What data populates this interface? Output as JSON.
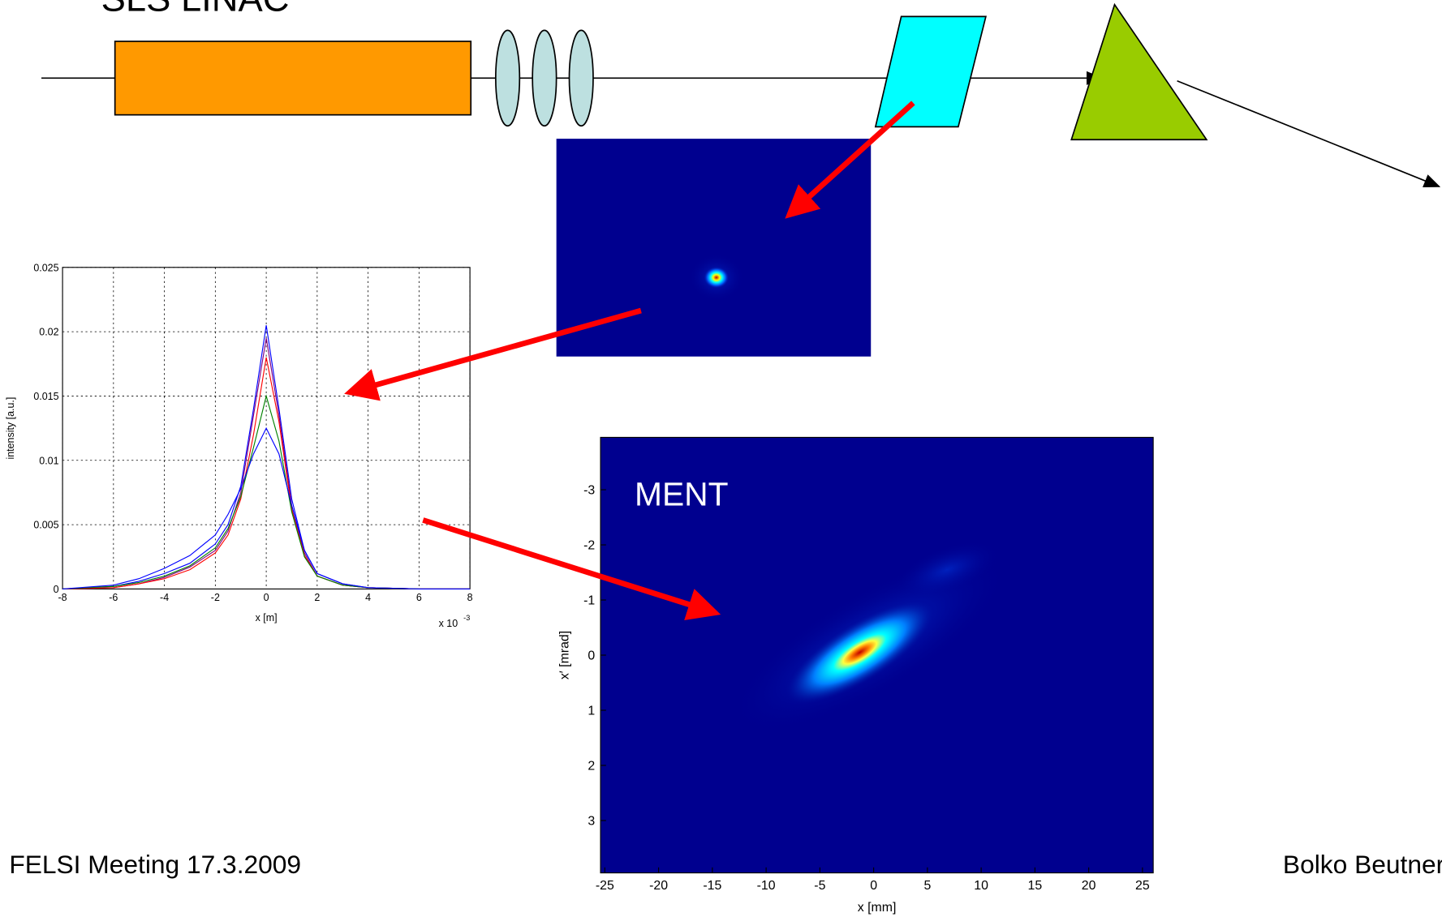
{
  "slide": {
    "title": "SLS LINAC",
    "footer_left": "FELSI Meeting 17.3.2009",
    "footer_right": "Bolko Beutner"
  },
  "chart_data": [
    {
      "type": "line",
      "ylabel": "intensity [a.u.]",
      "xlabel": "x [m]",
      "x_multiplier": "x 10",
      "x_exponent": "-3",
      "x": [
        -8,
        -6,
        -5,
        -4,
        -3,
        -2,
        -1.5,
        -1,
        -0.5,
        0,
        0.5,
        1,
        1.5,
        2,
        3,
        4,
        6,
        8
      ],
      "xlim": [
        -8,
        8
      ],
      "xticks": [
        -8,
        -6,
        -4,
        -2,
        0,
        2,
        4,
        6,
        8
      ],
      "ylim": [
        0,
        0.025
      ],
      "yticks": [
        0,
        0.005,
        0.01,
        0.015,
        0.02,
        0.025
      ],
      "grid": true,
      "series": [
        {
          "color": "#0000ff",
          "values": [
            0,
            0.0002,
            0.0006,
            0.0012,
            0.002,
            0.0035,
            0.005,
            0.008,
            0.014,
            0.0205,
            0.014,
            0.007,
            0.003,
            0.0012,
            0.0004,
            0.0001,
            0,
            0
          ]
        },
        {
          "color": "#800080",
          "values": [
            0,
            0.0001,
            0.0004,
            0.0009,
            0.0017,
            0.003,
            0.0045,
            0.0075,
            0.0135,
            0.0195,
            0.0135,
            0.0065,
            0.0028,
            0.001,
            0.0003,
            0.0001,
            0,
            0
          ]
        },
        {
          "color": "#ff0000",
          "values": [
            0,
            0.0001,
            0.0004,
            0.0008,
            0.0015,
            0.0028,
            0.0042,
            0.007,
            0.012,
            0.018,
            0.013,
            0.0062,
            0.0026,
            0.001,
            0.0003,
            0.0001,
            0,
            0
          ]
        },
        {
          "color": "#008000",
          "values": [
            0,
            0.0002,
            0.0005,
            0.001,
            0.0018,
            0.0032,
            0.0047,
            0.0072,
            0.011,
            0.015,
            0.0115,
            0.006,
            0.0025,
            0.001,
            0.0003,
            0.0001,
            0,
            0
          ]
        },
        {
          "color": "#0000ff",
          "values": [
            0,
            0.0003,
            0.0008,
            0.0016,
            0.0026,
            0.0042,
            0.0058,
            0.0078,
            0.0105,
            0.0125,
            0.0105,
            0.0065,
            0.003,
            0.0012,
            0.0004,
            0.0001,
            0,
            0
          ]
        }
      ]
    },
    {
      "type": "heatmap",
      "annotation": "MENT",
      "xlabel": "x [mm]",
      "ylabel": "x′ [mrad]",
      "xlim": [
        -25.4,
        26
      ],
      "xticks": [
        -25,
        -20,
        -15,
        -10,
        -5,
        0,
        5,
        10,
        15,
        20,
        25
      ],
      "ylim": [
        3.95,
        -3.95
      ],
      "yticks": [
        -3,
        -2,
        -1,
        0,
        1,
        2,
        3
      ]
    }
  ]
}
